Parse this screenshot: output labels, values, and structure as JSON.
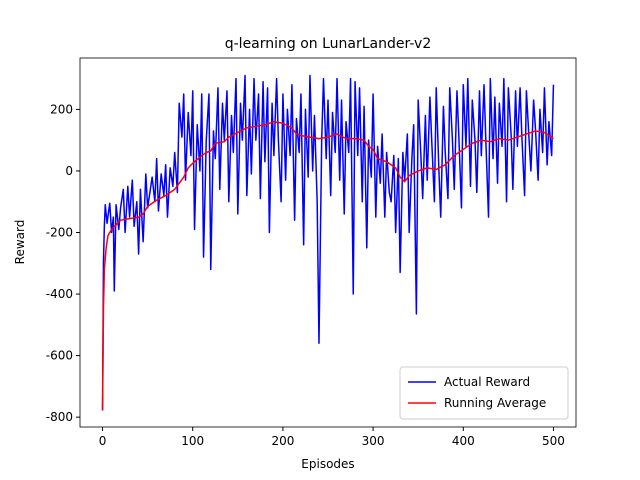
{
  "chart_data": {
    "type": "line",
    "title": "q-learning on LunarLander-v2",
    "xlabel": "Episodes",
    "ylabel": "Reward",
    "xlim": [
      -25,
      525
    ],
    "ylim": [
      -832,
      367
    ],
    "xticks": [
      0,
      100,
      200,
      300,
      400,
      500
    ],
    "yticks": [
      -800,
      -600,
      -400,
      -200,
      0,
      200
    ],
    "legend": "lower right",
    "series": [
      {
        "name": "Actual Reward",
        "color": "#0000ff",
        "x": [
          0,
          1,
          2,
          3,
          5,
          8,
          10,
          12,
          13,
          15,
          18,
          20,
          23,
          25,
          28,
          30,
          33,
          35,
          38,
          40,
          42,
          45,
          48,
          50,
          55,
          58,
          60,
          62,
          65,
          68,
          70,
          72,
          75,
          78,
          80,
          83,
          85,
          88,
          90,
          92,
          95,
          98,
          100,
          102,
          105,
          108,
          110,
          112,
          115,
          118,
          120,
          123,
          125,
          128,
          130,
          133,
          135,
          138,
          140,
          143,
          145,
          148,
          150,
          153,
          155,
          158,
          160,
          163,
          165,
          168,
          170,
          173,
          175,
          178,
          180,
          183,
          185,
          188,
          190,
          193,
          195,
          198,
          200,
          203,
          205,
          208,
          210,
          213,
          215,
          218,
          220,
          223,
          225,
          228,
          230,
          233,
          235,
          238,
          240,
          243,
          245,
          248,
          250,
          253,
          255,
          258,
          260,
          263,
          265,
          268,
          270,
          273,
          275,
          278,
          280,
          283,
          285,
          288,
          290,
          293,
          295,
          298,
          300,
          303,
          305,
          308,
          310,
          313,
          315,
          318,
          320,
          323,
          325,
          328,
          330,
          333,
          335,
          338,
          340,
          343,
          345,
          348,
          350,
          353,
          355,
          358,
          360,
          363,
          365,
          368,
          370,
          373,
          375,
          378,
          380,
          383,
          385,
          388,
          390,
          393,
          395,
          398,
          400,
          403,
          405,
          408,
          410,
          413,
          415,
          418,
          420,
          423,
          425,
          428,
          430,
          433,
          435,
          438,
          440,
          443,
          445,
          448,
          450,
          453,
          455,
          458,
          460,
          463,
          465,
          468,
          470,
          473,
          475,
          478,
          480,
          483,
          485,
          488,
          490,
          493,
          495,
          498,
          500
        ],
        "values": [
          -778,
          -300,
          -180,
          -110,
          -170,
          -105,
          -200,
          -150,
          -390,
          -110,
          -190,
          -120,
          -60,
          -200,
          -50,
          -150,
          -30,
          -180,
          -100,
          -270,
          -60,
          -230,
          -10,
          -120,
          -20,
          -100,
          40,
          -130,
          -10,
          -80,
          20,
          -150,
          10,
          -50,
          60,
          -70,
          220,
          110,
          250,
          -30,
          190,
          50,
          260,
          -190,
          150,
          0,
          250,
          -280,
          100,
          250,
          -320,
          130,
          40,
          270,
          -60,
          220,
          100,
          260,
          -100,
          180,
          60,
          300,
          -140,
          220,
          100,
          310,
          -80,
          200,
          -10,
          300,
          100,
          250,
          -90,
          290,
          30,
          270,
          -200,
          220,
          50,
          300,
          100,
          -100,
          250,
          -30,
          200,
          50,
          280,
          -160,
          170,
          60,
          250,
          -240,
          200,
          -20,
          310,
          0,
          180,
          -100,
          -560,
          100,
          300,
          40,
          230,
          -80,
          190,
          60,
          300,
          -30,
          230,
          -140,
          160,
          60,
          300,
          -400,
          290,
          50,
          270,
          -100,
          210,
          -250,
          100,
          -20,
          250,
          -150,
          80,
          -40,
          120,
          -150,
          60,
          -70,
          -100,
          50,
          -200,
          40,
          -330,
          60,
          -30,
          120,
          -200,
          40,
          150,
          -465,
          230,
          50,
          -90,
          180,
          -30,
          240,
          100,
          -100,
          270,
          0,
          -150,
          210,
          60,
          -90,
          270,
          100,
          -60,
          260,
          120,
          -120,
          280,
          80,
          300,
          -50,
          230,
          100,
          -70,
          260,
          50,
          280,
          100,
          -150,
          300,
          40,
          240,
          -40,
          220,
          80,
          300,
          -100,
          270,
          120,
          -60,
          260,
          80,
          270,
          110,
          -80,
          260,
          100,
          0,
          230,
          140,
          -30,
          200,
          60,
          270,
          20,
          160,
          50,
          280
        ]
      },
      {
        "name": "Running Average",
        "color": "#ff0000",
        "x": [
          0,
          1,
          2,
          4,
          6,
          10,
          15,
          20,
          30,
          40,
          45,
          50,
          60,
          70,
          80,
          90,
          95,
          100,
          110,
          115,
          120,
          125,
          135,
          140,
          150,
          160,
          170,
          180,
          190,
          200,
          210,
          215,
          220,
          230,
          240,
          250,
          260,
          270,
          280,
          290,
          295,
          300,
          305,
          315,
          325,
          330,
          335,
          340,
          350,
          360,
          370,
          380,
          390,
          400,
          410,
          420,
          430,
          440,
          450,
          460,
          470,
          480,
          490,
          500
        ],
        "values": [
          -778,
          -450,
          -320,
          -250,
          -210,
          -190,
          -175,
          -160,
          -155,
          -150,
          -140,
          -115,
          -95,
          -80,
          -60,
          -20,
          10,
          25,
          50,
          60,
          65,
          90,
          95,
          110,
          125,
          140,
          145,
          150,
          160,
          155,
          140,
          120,
          115,
          110,
          105,
          110,
          120,
          105,
          105,
          100,
          80,
          70,
          40,
          30,
          10,
          -20,
          -35,
          -15,
          0,
          10,
          5,
          20,
          50,
          70,
          90,
          100,
          95,
          105,
          100,
          110,
          120,
          130,
          125,
          105
        ]
      }
    ]
  }
}
